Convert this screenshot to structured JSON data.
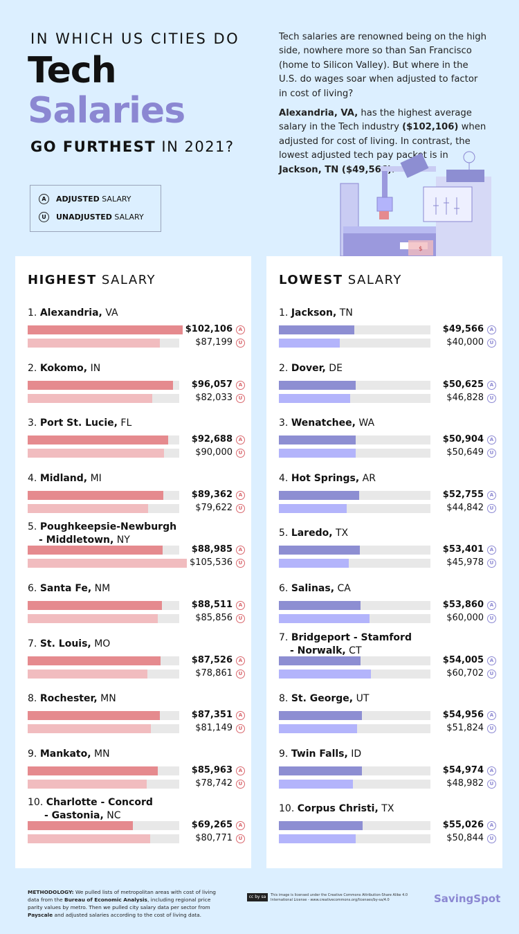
{
  "header": {
    "line1": "IN WHICH US CITIES DO",
    "word1": "Tech",
    "word2": "Salaries",
    "line2_bold": "GO FURTHEST",
    "line2_rest": " IN 2021?"
  },
  "legend": {
    "adjusted_icon": "A",
    "adjusted_bold": "ADJUSTED",
    "adjusted_rest": " SALARY",
    "unadjusted_icon": "U",
    "unadjusted_bold": "UNADJUSTED",
    "unadjusted_rest": " SALARY"
  },
  "intro": {
    "p1": "Tech salaries are renowned being on the high side, nowhere more so than San Francisco (home to Silicon Valley). But where in the U.S. do wages soar when adjusted to factor in cost of living?",
    "p2_b1": "Alexandria, VA,",
    "p2_t1": " has the highest average salary in the Tech industry ",
    "p2_b2": "($102,106)",
    "p2_t2": " when adjusted for cost of living. In contrast, the lowest adjusted tech pay packet is in ",
    "p2_b3": "Jackson, TN ($49,566)",
    "p2_t3": "."
  },
  "colors": {
    "high_adjusted": "#e58a8e",
    "high_unadjusted": "#f1bcbf",
    "low_adjusted": "#8d8ed2",
    "low_unadjusted": "#b3b4fb",
    "accent": "#8b87d2",
    "background": "#dcefff"
  },
  "chart_data": [
    {
      "type": "bar",
      "title_bold": "HIGHEST",
      "title_rest": " SALARY",
      "series": [
        {
          "name": "ADJUSTED SALARY"
        },
        {
          "name": "UNADJUSTED SALARY"
        }
      ],
      "items": [
        {
          "rank": "1.",
          "name": "Alexandria,",
          "state": " VA",
          "line2": "",
          "adjusted": 102106,
          "adjusted_label": "$102,106",
          "unadjusted": 87199,
          "unadjusted_label": "$87,199"
        },
        {
          "rank": "2.",
          "name": "Kokomo,",
          "state": " IN",
          "line2": "",
          "adjusted": 96057,
          "adjusted_label": "$96,057",
          "unadjusted": 82033,
          "unadjusted_label": "$82,033"
        },
        {
          "rank": "3.",
          "name": "Port St. Lucie,",
          "state": " FL",
          "line2": "",
          "adjusted": 92688,
          "adjusted_label": "$92,688",
          "unadjusted": 90000,
          "unadjusted_label": "$90,000"
        },
        {
          "rank": "4.",
          "name": "Midland,",
          "state": " MI",
          "line2": "",
          "adjusted": 89362,
          "adjusted_label": "$89,362",
          "unadjusted": 79622,
          "unadjusted_label": "$79,622"
        },
        {
          "rank": "5.",
          "name": "Poughkeepsie-Newburgh",
          "state": "",
          "line2_bold": "- Middletown,",
          "line2": " NY",
          "adjusted": 88985,
          "adjusted_label": "$88,985",
          "unadjusted": 105536,
          "unadjusted_label": "$105,536"
        },
        {
          "rank": "6.",
          "name": "Santa Fe,",
          "state": " NM",
          "line2": "",
          "adjusted": 88511,
          "adjusted_label": "$88,511",
          "unadjusted": 85856,
          "unadjusted_label": "$85,856"
        },
        {
          "rank": "7.",
          "name": "St. Louis,",
          "state": " MO",
          "line2": "",
          "adjusted": 87526,
          "adjusted_label": "$87,526",
          "unadjusted": 78861,
          "unadjusted_label": "$78,861"
        },
        {
          "rank": "8.",
          "name": "Rochester,",
          "state": " MN",
          "line2": "",
          "adjusted": 87351,
          "adjusted_label": "$87,351",
          "unadjusted": 81149,
          "unadjusted_label": "$81,149"
        },
        {
          "rank": "9.",
          "name": "Mankato,",
          "state": " MN",
          "line2": "",
          "adjusted": 85963,
          "adjusted_label": "$85,963",
          "unadjusted": 78742,
          "unadjusted_label": "$78,742"
        },
        {
          "rank": "10.",
          "name": "Charlotte - Concord",
          "state": "",
          "line2_bold": "- Gastonia,",
          "line2": " NC",
          "adjusted": 69265,
          "adjusted_label": "$69,265",
          "unadjusted": 80771,
          "unadjusted_label": "$80,771"
        }
      ]
    },
    {
      "type": "bar",
      "title_bold": "LOWEST",
      "title_rest": " SALARY",
      "series": [
        {
          "name": "ADJUSTED SALARY"
        },
        {
          "name": "UNADJUSTED SALARY"
        }
      ],
      "items": [
        {
          "rank": "1.",
          "name": "Jackson,",
          "state": " TN",
          "line2": "",
          "adjusted": 49566,
          "adjusted_label": "$49,566",
          "unadjusted": 40000,
          "unadjusted_label": "$40,000"
        },
        {
          "rank": "2.",
          "name": "Dover,",
          "state": " DE",
          "line2": "",
          "adjusted": 50625,
          "adjusted_label": "$50,625",
          "unadjusted": 46828,
          "unadjusted_label": "$46,828"
        },
        {
          "rank": "3.",
          "name": "Wenatchee,",
          "state": " WA",
          "line2": "",
          "adjusted": 50904,
          "adjusted_label": "$50,904",
          "unadjusted": 50649,
          "unadjusted_label": "$50,649"
        },
        {
          "rank": "4.",
          "name": "Hot Springs,",
          "state": " AR",
          "line2": "",
          "adjusted": 52755,
          "adjusted_label": "$52,755",
          "unadjusted": 44842,
          "unadjusted_label": "$44,842"
        },
        {
          "rank": "5.",
          "name": "Laredo,",
          "state": " TX",
          "line2": "",
          "adjusted": 53401,
          "adjusted_label": "$53,401",
          "unadjusted": 45978,
          "unadjusted_label": "$45,978"
        },
        {
          "rank": "6.",
          "name": "Salinas,",
          "state": " CA",
          "line2": "",
          "adjusted": 53860,
          "adjusted_label": "$53,860",
          "unadjusted": 60000,
          "unadjusted_label": "$60,000"
        },
        {
          "rank": "7.",
          "name": "Bridgeport - Stamford",
          "state": "",
          "line2_bold": "- Norwalk,",
          "line2": " CT",
          "adjusted": 54005,
          "adjusted_label": "$54,005",
          "unadjusted": 60702,
          "unadjusted_label": "$60,702"
        },
        {
          "rank": "8.",
          "name": "St. George,",
          "state": " UT",
          "line2": "",
          "adjusted": 54956,
          "adjusted_label": "$54,956",
          "unadjusted": 51824,
          "unadjusted_label": "$51,824"
        },
        {
          "rank": "9.",
          "name": "Twin Falls,",
          "state": " ID",
          "line2": "",
          "adjusted": 54974,
          "adjusted_label": "$54,974",
          "unadjusted": 48982,
          "unadjusted_label": "$48,982"
        },
        {
          "rank": "10.",
          "name": "Corpus Christi,",
          "state": " TX",
          "line2": "",
          "adjusted": 55026,
          "adjusted_label": "$55,026",
          "unadjusted": 50844,
          "unadjusted_label": "$50,844"
        }
      ]
    }
  ],
  "footer": {
    "method_label": "METHODOLOGY:",
    "method_t1": " We pulled lists of metropolitan areas with cost of living data from the ",
    "method_b1": "Bureau of Economic Analysis",
    "method_t2": ", including regional price parity values by metro. Then we pulled city salary data per sector from ",
    "method_b2": "Payscale",
    "method_t3": " and adjusted salaries according to the cost of living data.",
    "license_badge": "cc by sa",
    "license_text": "This image is licensed under the Creative Commons Attribution-Share Alike 4.0 International License - www.creativecommons.org/licenses/by-sa/4.0",
    "brand": "SavingSpot"
  }
}
